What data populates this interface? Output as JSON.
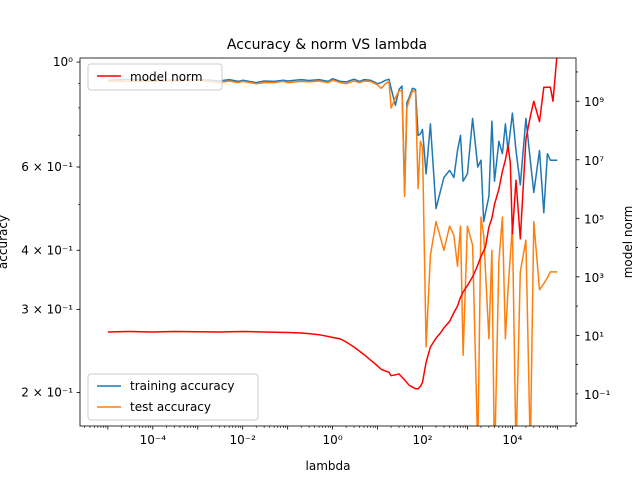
{
  "chart_data": {
    "type": "line",
    "title": "Accuracy & norm VS lambda",
    "xlabel": "lambda",
    "ylabel": "accuracy",
    "y2label": "model norm",
    "xscale": "log",
    "yscale": "log",
    "y2scale": "log",
    "xlim": [
      2.4e-06,
      260000.0
    ],
    "ylim": [
      0.17,
      1.02
    ],
    "y2lim": [
      0.008,
      30000000000.0
    ],
    "x_ticks": [
      {
        "value": 0.0001,
        "label": "10⁻⁴"
      },
      {
        "value": 0.01,
        "label": "10⁻²"
      },
      {
        "value": 1,
        "label": "10⁰"
      },
      {
        "value": 100,
        "label": "10²"
      },
      {
        "value": 10000,
        "label": "10⁴"
      }
    ],
    "y_ticks": [
      {
        "value": 1.0,
        "label": "10⁰"
      },
      {
        "value": 0.6,
        "label": "6 × 10⁻¹"
      },
      {
        "value": 0.4,
        "label": "4 × 10⁻¹"
      },
      {
        "value": 0.3,
        "label": "3 × 10⁻¹"
      },
      {
        "value": 0.2,
        "label": "2 × 10⁻¹"
      }
    ],
    "y2_ticks": [
      {
        "value": 1000000000.0,
        "label": "10⁹"
      },
      {
        "value": 10000000.0,
        "label": "10⁷"
      },
      {
        "value": 100000.0,
        "label": "10⁵"
      },
      {
        "value": 1000.0,
        "label": "10³"
      },
      {
        "value": 10,
        "label": "10¹"
      },
      {
        "value": 0.1,
        "label": "10⁻¹"
      }
    ],
    "legend_left_top": "top-left",
    "legend_left_bottom": "bottom-left",
    "grid": false,
    "series": [
      {
        "name": "training accuracy",
        "axis": "left",
        "color": "#1f77b4",
        "x": [
          1e-05,
          3e-05,
          0.0001,
          0.0003,
          0.001,
          0.002,
          0.003,
          0.005,
          0.008,
          0.01,
          0.02,
          0.03,
          0.05,
          0.08,
          0.1,
          0.2,
          0.3,
          0.5,
          0.8,
          1,
          1.5,
          2,
          3,
          4,
          5,
          7,
          10,
          12,
          15,
          18,
          20,
          25,
          30,
          35,
          40,
          45,
          50,
          60,
          70,
          80,
          90,
          100,
          120,
          150,
          200,
          300,
          400,
          500,
          600,
          700,
          800,
          1000,
          1300,
          1700,
          2000,
          2300,
          3000,
          3500,
          4000,
          5000,
          6000,
          7000,
          8000,
          10000,
          12000,
          15000,
          20000,
          25000,
          30000,
          40000,
          50000,
          60000,
          70000,
          100000
        ],
        "y": [
          0.915,
          0.92,
          0.915,
          0.915,
          0.918,
          0.915,
          0.912,
          0.918,
          0.91,
          0.915,
          0.905,
          0.912,
          0.91,
          0.915,
          0.912,
          0.918,
          0.914,
          0.918,
          0.91,
          0.922,
          0.91,
          0.908,
          0.92,
          0.91,
          0.918,
          0.915,
          0.9,
          0.905,
          0.915,
          0.92,
          0.88,
          0.81,
          0.875,
          0.89,
          0.53,
          0.82,
          0.84,
          0.88,
          0.875,
          0.7,
          0.705,
          0.72,
          0.58,
          0.74,
          0.49,
          0.57,
          0.59,
          0.57,
          0.65,
          0.7,
          0.56,
          0.58,
          0.76,
          0.6,
          0.62,
          0.46,
          0.52,
          0.75,
          0.56,
          0.68,
          0.64,
          0.74,
          0.65,
          0.78,
          0.65,
          0.55,
          0.76,
          0.62,
          0.53,
          0.65,
          0.48,
          0.64,
          0.62,
          0.62
        ]
      },
      {
        "name": "test accuracy",
        "axis": "left",
        "color": "#ff7f0e",
        "x": [
          1e-05,
          3e-05,
          0.0001,
          0.0003,
          0.001,
          0.002,
          0.003,
          0.005,
          0.008,
          0.01,
          0.02,
          0.03,
          0.05,
          0.08,
          0.1,
          0.2,
          0.3,
          0.5,
          0.8,
          1,
          1.5,
          2,
          3,
          4,
          5,
          7,
          10,
          12,
          15,
          18,
          20,
          25,
          30,
          35,
          40,
          45,
          50,
          60,
          70,
          80,
          90,
          100,
          120,
          150,
          200,
          300,
          400,
          500,
          600,
          700,
          800,
          1000,
          1300,
          1700,
          2000,
          2300,
          3000,
          3500,
          4000,
          5000,
          6000,
          7000,
          8000,
          10000,
          12000,
          15000,
          20000,
          25000,
          30000,
          40000,
          50000,
          60000,
          70000,
          100000
        ],
        "y": [
          0.912,
          0.91,
          0.91,
          0.912,
          0.915,
          0.91,
          0.905,
          0.912,
          0.905,
          0.91,
          0.9,
          0.905,
          0.905,
          0.91,
          0.905,
          0.91,
          0.908,
          0.912,
          0.905,
          0.915,
          0.905,
          0.9,
          0.912,
          0.905,
          0.912,
          0.91,
          0.895,
          0.88,
          0.9,
          0.91,
          0.8,
          0.84,
          0.87,
          0.87,
          0.52,
          0.8,
          0.83,
          0.87,
          0.865,
          0.54,
          0.68,
          0.66,
          0.25,
          0.39,
          0.46,
          0.4,
          0.45,
          0.43,
          0.37,
          0.45,
          0.24,
          0.45,
          0.41,
          0.15,
          0.47,
          0.43,
          0.26,
          0.4,
          0.14,
          0.38,
          0.47,
          0.26,
          0.33,
          0.45,
          0.15,
          0.36,
          0.42,
          0.15,
          0.46,
          0.33,
          0.34,
          0.35,
          0.36,
          0.36
        ]
      },
      {
        "name": "model norm",
        "axis": "right",
        "color": "#ff0000",
        "x": [
          1e-05,
          3e-05,
          0.0001,
          0.0003,
          0.001,
          0.003,
          0.01,
          0.03,
          0.1,
          0.2,
          0.3,
          0.5,
          1,
          1.5,
          2,
          3,
          5,
          8,
          10,
          12,
          15,
          18,
          20,
          25,
          30,
          40,
          50,
          60,
          70,
          80,
          90,
          100,
          120,
          150,
          200,
          250,
          300,
          400,
          500,
          600,
          700,
          800,
          1000,
          1300,
          1600,
          2000,
          2500,
          3000,
          3500,
          4000,
          5000,
          6000,
          7000,
          8000,
          9000,
          10000,
          12000,
          15000,
          20000,
          25000,
          30000,
          40000,
          50000,
          70000,
          80000,
          100000
        ],
        "y": [
          13,
          13.5,
          13,
          13.5,
          13.2,
          13,
          13.5,
          13,
          12.5,
          12,
          11.5,
          10.5,
          8.5,
          7.5,
          6,
          4,
          2.2,
          1.2,
          0.9,
          0.7,
          0.6,
          0.55,
          0.42,
          0.45,
          0.48,
          0.3,
          0.2,
          0.17,
          0.15,
          0.15,
          0.18,
          0.25,
          1.2,
          4,
          8,
          12,
          18,
          30,
          60,
          100,
          200,
          300,
          500,
          1000,
          2000,
          5000,
          10000.0,
          50000.0,
          100000.0,
          300000.0,
          1000000.0,
          4000000.0,
          10000000.0,
          30000000.0,
          8000000.0,
          30000.0,
          2000000.0,
          20000.0,
          50000000.0,
          300000000.0,
          1000000000.0,
          200000000.0,
          3000000000.0,
          3000000000.0,
          1000000000.0,
          50000000000.0
        ]
      }
    ]
  }
}
